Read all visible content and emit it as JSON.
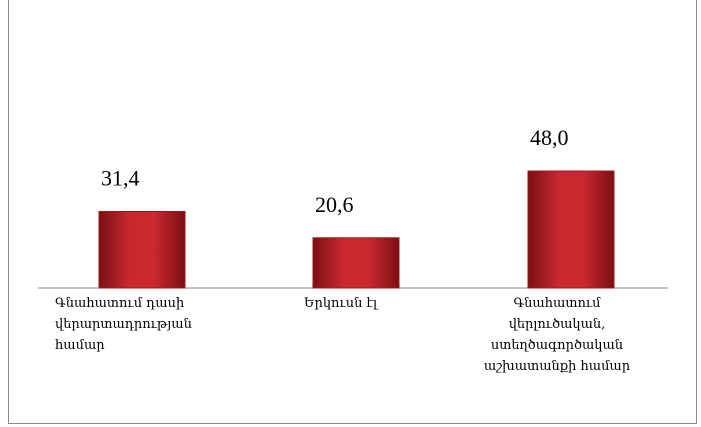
{
  "chart_data": {
    "type": "bar",
    "categories": [
      "Գնահատում  դասի վերարտադրության համար",
      "Երկուսն էլ",
      "Գնահատում վերլուծական, ստեղծագործական աշխատանքի համար"
    ],
    "values": [
      31.4,
      20.6,
      48.0
    ],
    "value_labels": [
      "31,4",
      "20,6",
      "48,0"
    ],
    "color": "#c8282e"
  }
}
